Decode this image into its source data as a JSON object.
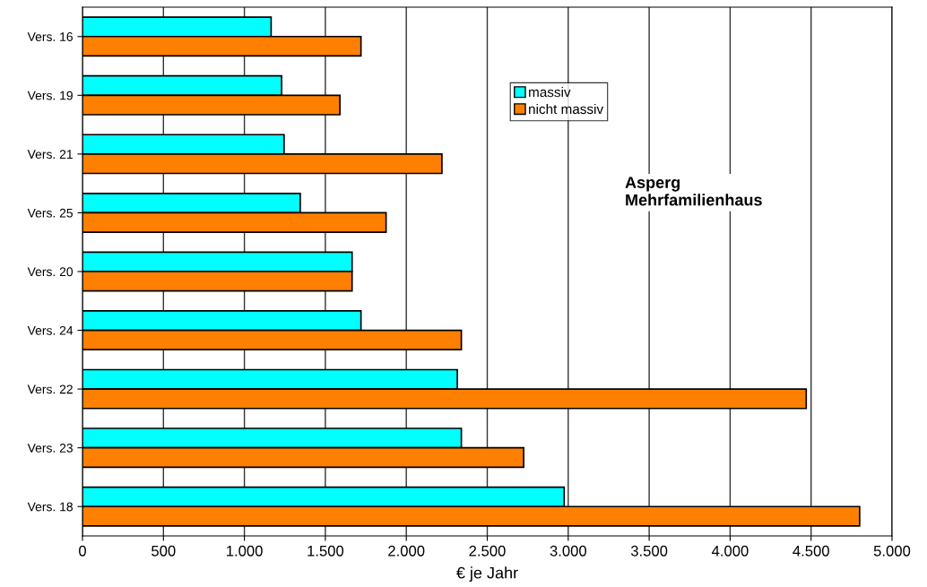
{
  "chart_data": {
    "type": "bar",
    "orientation": "horizontal",
    "categories": [
      "Vers. 16",
      "Vers. 19",
      "Vers. 21",
      "Vers. 25",
      "Vers. 20",
      "Vers. 24",
      "Vers. 22",
      "Vers. 23",
      "Vers. 18"
    ],
    "series": [
      {
        "name": "massiv",
        "color": "#00ffff",
        "values": [
          1165,
          1230,
          1245,
          1345,
          1665,
          1720,
          2315,
          2340,
          2975
        ]
      },
      {
        "name": "nicht massiv",
        "color": "#ff8000",
        "values": [
          1720,
          1590,
          2220,
          1875,
          1665,
          2340,
          4470,
          2725,
          4800
        ]
      }
    ],
    "xlabel": "€ je Jahr",
    "xlim": [
      0,
      5000
    ],
    "xticks": [
      {
        "value": 0,
        "label": "0"
      },
      {
        "value": 500,
        "label": "500"
      },
      {
        "value": 1000,
        "label": "1.000"
      },
      {
        "value": 1500,
        "label": "1.500"
      },
      {
        "value": 2000,
        "label": "2.000"
      },
      {
        "value": 2500,
        "label": "2.500"
      },
      {
        "value": 3000,
        "label": "3.000"
      },
      {
        "value": 3500,
        "label": "3.500"
      },
      {
        "value": 4000,
        "label": "4.000"
      },
      {
        "value": 4500,
        "label": "4.500"
      },
      {
        "value": 5000,
        "label": "5.000"
      }
    ],
    "grid": "x",
    "legend": "top right",
    "annotations": [
      "Asperg\nMehrfamilienhaus"
    ]
  }
}
